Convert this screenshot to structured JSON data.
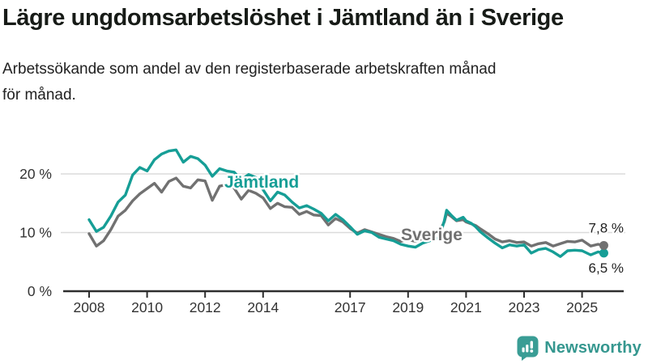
{
  "header": {
    "title": "Lägre ungdomsarbetslöshet i Jämtland än i Sverige",
    "subtitle": "Arbetssökande som andel av den registerbaserade arbetskraften månad\nför månad."
  },
  "chart_data": {
    "type": "line",
    "title": "Lägre ungdomsarbetslöshet i Jämtland än i Sverige",
    "xlabel": "",
    "ylabel": "",
    "grid": "horizontal",
    "legend_position": "inline-labels",
    "xlim": [
      2007.9,
      2026.2
    ],
    "ylim": [
      0,
      27.5
    ],
    "y_ticks": [
      {
        "label": "0 %",
        "value": 0
      },
      {
        "label": "10 %",
        "value": 10
      },
      {
        "label": "20 %",
        "value": 20
      }
    ],
    "x_ticks": [
      {
        "label": "2008",
        "value": 2008
      },
      {
        "label": "2010",
        "value": 2010
      },
      {
        "label": "2012",
        "value": 2012
      },
      {
        "label": "2014",
        "value": 2014
      },
      {
        "label": "2017",
        "value": 2017
      },
      {
        "label": "2019",
        "value": 2019
      },
      {
        "label": "2021",
        "value": 2021
      },
      {
        "label": "2023",
        "value": 2023
      },
      {
        "label": "2025",
        "value": 2025
      }
    ],
    "x": [
      2008,
      2008.25,
      2008.5,
      2008.75,
      2009,
      2009.25,
      2009.5,
      2009.75,
      2010,
      2010.25,
      2010.5,
      2010.75,
      2011,
      2011.25,
      2011.5,
      2011.75,
      2012,
      2012.25,
      2012.5,
      2012.75,
      2013,
      2013.25,
      2013.5,
      2013.75,
      2014,
      2014.25,
      2014.5,
      2014.75,
      2015,
      2015.25,
      2015.5,
      2015.75,
      2016,
      2016.25,
      2016.5,
      2016.75,
      2017,
      2017.25,
      2017.5,
      2017.75,
      2018,
      2018.25,
      2018.5,
      2018.75,
      2019,
      2019.25,
      2019.5,
      2019.75,
      2020.08,
      2020.25,
      2020.33,
      2020.5,
      2020.67,
      2020.9,
      2021,
      2021.17,
      2021.33,
      2021.5,
      2021.75,
      2022,
      2022.25,
      2022.5,
      2022.75,
      2023,
      2023.25,
      2023.5,
      2023.75,
      2024,
      2024.25,
      2024.5,
      2024.75,
      2025,
      2025.3,
      2025.55,
      2025.75
    ],
    "series": [
      {
        "name": "Jämtland",
        "color": "#169E96",
        "end_label": "6,5 %",
        "values": [
          12.2,
          10.2,
          10.9,
          12.8,
          15.2,
          16.4,
          19.8,
          21.1,
          20.5,
          22.4,
          23.4,
          23.9,
          24.1,
          22.0,
          23.0,
          22.6,
          21.5,
          19.6,
          20.9,
          20.5,
          20.3,
          19.0,
          19.9,
          19.4,
          17.3,
          15.4,
          16.9,
          16.4,
          15.2,
          14.2,
          14.6,
          14.0,
          13.3,
          12.0,
          13.1,
          12.2,
          11.0,
          9.7,
          10.3,
          10.0,
          9.2,
          8.9,
          8.6,
          8.0,
          7.7,
          7.5,
          8.2,
          8.6,
          9.2,
          12.0,
          13.8,
          12.9,
          12.1,
          12.6,
          12.0,
          11.6,
          11.0,
          10.1,
          9.1,
          8.2,
          7.4,
          7.9,
          7.7,
          7.9,
          6.5,
          7.1,
          7.3,
          6.7,
          5.9,
          6.9,
          7.0,
          6.9,
          6.2,
          6.7,
          6.5
        ]
      },
      {
        "name": "Sverige",
        "color": "#717171",
        "end_label": "7,8 %",
        "values": [
          9.8,
          7.7,
          8.6,
          10.5,
          12.8,
          13.8,
          15.4,
          16.6,
          17.5,
          18.4,
          16.9,
          18.7,
          19.3,
          17.9,
          17.6,
          19.0,
          18.8,
          15.5,
          17.9,
          18.2,
          17.6,
          15.7,
          17.2,
          16.7,
          15.9,
          14.1,
          15.0,
          14.4,
          14.3,
          13.1,
          13.6,
          13.0,
          12.9,
          11.3,
          12.4,
          11.8,
          10.7,
          9.9,
          10.5,
          10.1,
          9.7,
          9.3,
          9.0,
          8.5,
          8.8,
          8.5,
          9.0,
          9.5,
          10.2,
          11.8,
          13.3,
          12.7,
          12.0,
          12.2,
          11.8,
          11.5,
          11.2,
          10.6,
          9.8,
          8.9,
          8.4,
          8.6,
          8.3,
          8.4,
          7.7,
          8.1,
          8.3,
          7.7,
          8.1,
          8.5,
          8.4,
          8.7,
          7.7,
          8.0,
          7.8
        ]
      }
    ],
    "colors": {
      "gridline": "#DBDBDB",
      "axis": "#2E2E2E",
      "tick_text": "#333333",
      "end_label_text": "#1f1f1f"
    }
  },
  "footer": {
    "brand": "Newsworthy",
    "logo_color": "#3A9D95"
  }
}
